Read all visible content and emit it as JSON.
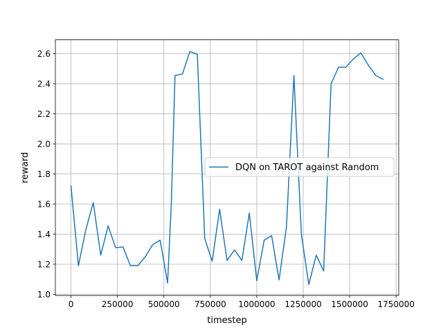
{
  "chart_data": {
    "type": "line",
    "title": "",
    "xlabel": "timestep",
    "ylabel": "reward",
    "xlim": [
      -84000,
      1764000
    ],
    "ylim": [
      0.992,
      2.692
    ],
    "xticks": [
      0,
      250000,
      500000,
      750000,
      1000000,
      1250000,
      1500000,
      1750000
    ],
    "xtick_labels": [
      "0",
      "250000",
      "500000",
      "750000",
      "1000000",
      "1250000",
      "1500000",
      "1750000"
    ],
    "yticks": [
      1.0,
      1.2,
      1.4,
      1.6,
      1.8,
      2.0,
      2.2,
      2.4,
      2.6
    ],
    "ytick_labels": [
      "1.0",
      "1.2",
      "1.4",
      "1.6",
      "1.8",
      "2.0",
      "2.2",
      "2.4",
      "2.6"
    ],
    "grid": true,
    "legend_position": "center-right",
    "series": [
      {
        "name": "DQN on TAROT against Random",
        "color": "#1f77b4",
        "x": [
          0,
          40000,
          80000,
          120000,
          160000,
          200000,
          240000,
          280000,
          320000,
          360000,
          400000,
          440000,
          480000,
          520000,
          540000,
          560000,
          600000,
          640000,
          680000,
          720000,
          760000,
          800000,
          840000,
          880000,
          920000,
          960000,
          1000000,
          1040000,
          1080000,
          1120000,
          1160000,
          1200000,
          1240000,
          1280000,
          1320000,
          1360000,
          1400000,
          1440000,
          1480000,
          1520000,
          1560000,
          1600000,
          1640000,
          1680000
        ],
        "y": [
          1.72,
          1.19,
          1.43,
          1.61,
          1.26,
          1.455,
          1.31,
          1.315,
          1.19,
          1.19,
          1.25,
          1.33,
          1.36,
          1.075,
          1.6,
          2.455,
          2.465,
          2.615,
          2.595,
          1.37,
          1.22,
          1.565,
          1.225,
          1.295,
          1.225,
          1.54,
          1.09,
          1.36,
          1.39,
          1.095,
          1.45,
          2.455,
          1.4,
          1.065,
          1.26,
          1.155,
          2.4,
          2.51,
          2.51,
          2.565,
          2.605,
          2.525,
          2.455,
          2.43
        ]
      }
    ]
  }
}
